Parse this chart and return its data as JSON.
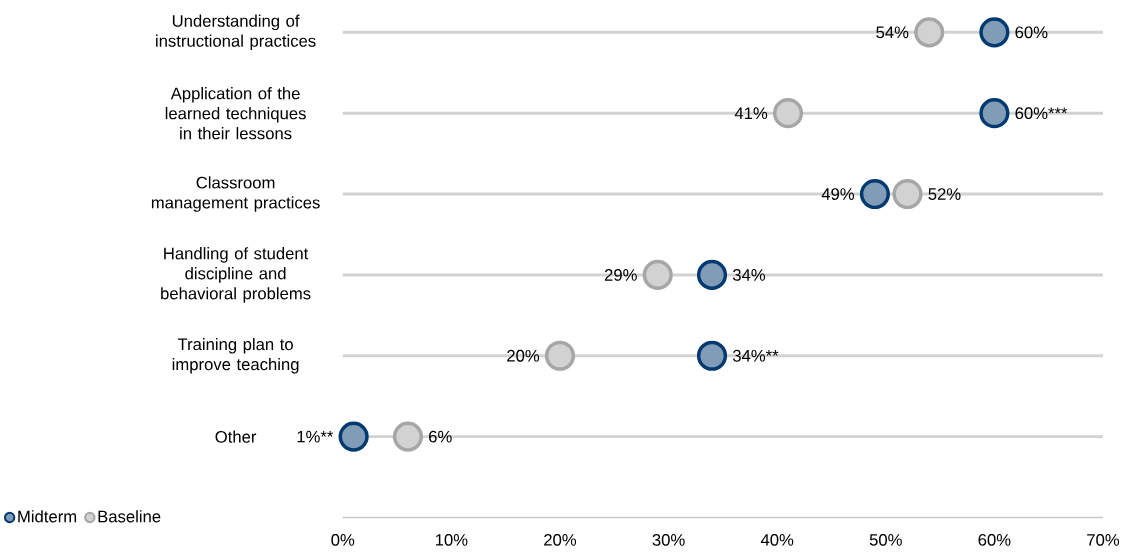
{
  "chart_data": {
    "type": "scatter",
    "orientation": "horizontal",
    "categories": [
      "Understanding of instructional practices",
      "Application of the learned techniques in their lessons",
      "Classroom management practices",
      "Handling of student discipline and behavioral problems",
      "Training plan to improve teaching",
      "Other"
    ],
    "series": [
      {
        "name": "Midterm",
        "color": "#003a70",
        "values": [
          60,
          60,
          49,
          34,
          34,
          1
        ],
        "value_labels": [
          "60%",
          "60%***",
          "49%",
          "34%",
          "34%**",
          "1%**"
        ]
      },
      {
        "name": "Baseline",
        "color": "#a6a6a6",
        "values": [
          54,
          41,
          52,
          29,
          20,
          6
        ],
        "value_labels": [
          "54%",
          "41%",
          "52%",
          "29%",
          "20%",
          "6%"
        ]
      }
    ],
    "xlim": [
      0,
      70
    ],
    "xticks": [
      {
        "value": 0,
        "label": "0%"
      },
      {
        "value": 10,
        "label": "10%"
      },
      {
        "value": 20,
        "label": "20%"
      },
      {
        "value": 30,
        "label": "30%"
      },
      {
        "value": 40,
        "label": "40%"
      },
      {
        "value": 50,
        "label": "50%"
      },
      {
        "value": 60,
        "label": "60%"
      },
      {
        "value": 70,
        "label": "70%"
      }
    ],
    "grid": "y",
    "legend": "bottom left"
  }
}
